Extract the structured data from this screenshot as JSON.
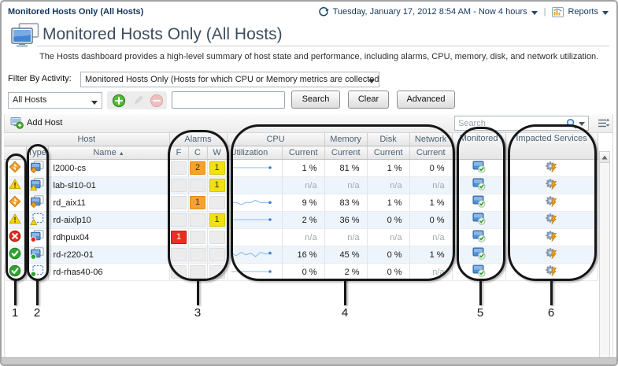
{
  "window": {
    "breadcrumb": "Monitored Hosts Only (All Hosts)"
  },
  "topbar": {
    "time_range": "Tuesday, January 17, 2012 8:54 AM - Now 4 hours",
    "reports": "Reports"
  },
  "page": {
    "title": "Monitored Hosts Only (All Hosts)",
    "description": "The Hosts dashboard provides a high-level summary of host state and performance, including alarms, CPU, memory, disk, and network utilization."
  },
  "activity_filter": {
    "label": "Filter By Activity:",
    "value": "Monitored Hosts Only (Hosts for which CPU or Memory metrics are collected)"
  },
  "host_selector": {
    "value": "All Hosts"
  },
  "search_bar": {
    "query": "",
    "search": "Search",
    "clear": "Clear",
    "advanced": "Advanced"
  },
  "table_toolbar": {
    "add_host": "Add Host",
    "search_placeholder": "Search"
  },
  "table": {
    "group_headers": {
      "host": "Host",
      "alarms": "Alarms",
      "cpu": "CPU",
      "memory": "Memory",
      "disk": "Disk",
      "network": "Network",
      "monitored": "Monitored",
      "impacted": "Impacted Services"
    },
    "col_headers": {
      "type": "Type",
      "name": "Name",
      "fatal": "F",
      "critical": "C",
      "warning": "W",
      "utilization": "Utilization",
      "current": "Current"
    },
    "sort_indicator": "▲",
    "rows": [
      {
        "name": "l2000-cs",
        "status": "critical",
        "type": "physical",
        "alarms": {
          "f": "",
          "c": "2",
          "w": "1"
        },
        "spark": [
          1,
          1,
          1,
          1,
          1,
          1,
          1,
          1
        ],
        "cpu": "1 %",
        "memory": "81 %",
        "disk": "1 %",
        "network": "0 %",
        "monitored": true,
        "impacted": true
      },
      {
        "name": "lab-sl10-01",
        "status": "warning",
        "type": "physical",
        "alarms": {
          "f": "",
          "c": "",
          "w": "1"
        },
        "spark": null,
        "cpu": "n/a",
        "memory": "n/a",
        "disk": "n/a",
        "network": "n/a",
        "monitored": true,
        "impacted": true
      },
      {
        "name": "rd_aix11",
        "status": "critical",
        "type": "physical",
        "alarms": {
          "f": "",
          "c": "1",
          "w": ""
        },
        "spark": [
          9,
          9,
          8,
          9,
          9,
          10,
          9,
          9,
          9
        ],
        "cpu": "9 %",
        "memory": "83 %",
        "disk": "1 %",
        "network": "1 %",
        "monitored": true,
        "impacted": true
      },
      {
        "name": "rd-aixlp10",
        "status": "warning",
        "type": "virtual",
        "alarms": {
          "f": "",
          "c": "",
          "w": "1"
        },
        "spark": [
          2,
          2,
          2,
          2,
          2,
          2,
          2,
          2
        ],
        "cpu": "2 %",
        "memory": "36 %",
        "disk": "0 %",
        "network": "0 %",
        "monitored": true,
        "impacted": true
      },
      {
        "name": "rdhpux04",
        "status": "fatal",
        "type": "physical",
        "alarms": {
          "f": "1",
          "c": "",
          "w": ""
        },
        "spark": null,
        "cpu": "n/a",
        "memory": "n/a",
        "disk": "n/a",
        "network": "n/a",
        "monitored": true,
        "impacted": true
      },
      {
        "name": "rd-r220-01",
        "status": "normal",
        "type": "physical",
        "alarms": {
          "f": "",
          "c": "",
          "w": ""
        },
        "spark": [
          16,
          13,
          17,
          14,
          16,
          12,
          17,
          15,
          16
        ],
        "cpu": "16 %",
        "memory": "45 %",
        "disk": "0 %",
        "network": "1 %",
        "monitored": true,
        "impacted": true
      },
      {
        "name": "rd-rhas40-06",
        "status": "normal",
        "type": "virtual",
        "alarms": {
          "f": "",
          "c": "",
          "w": ""
        },
        "spark": [
          0,
          0,
          0,
          0,
          0,
          0,
          0,
          0
        ],
        "cpu": "0 %",
        "memory": "2 %",
        "disk": "0 %",
        "network": "n/a",
        "monitored": true,
        "impacted": true
      }
    ]
  },
  "callouts": {
    "labels": [
      "1",
      "2",
      "3",
      "4",
      "5",
      "6"
    ]
  },
  "colors": {
    "critical": "#f59d28",
    "warning": "#f3e00f",
    "fatal": "#ee2d20",
    "normal": "#2fa52f",
    "sparkline": "#8cbcec"
  }
}
